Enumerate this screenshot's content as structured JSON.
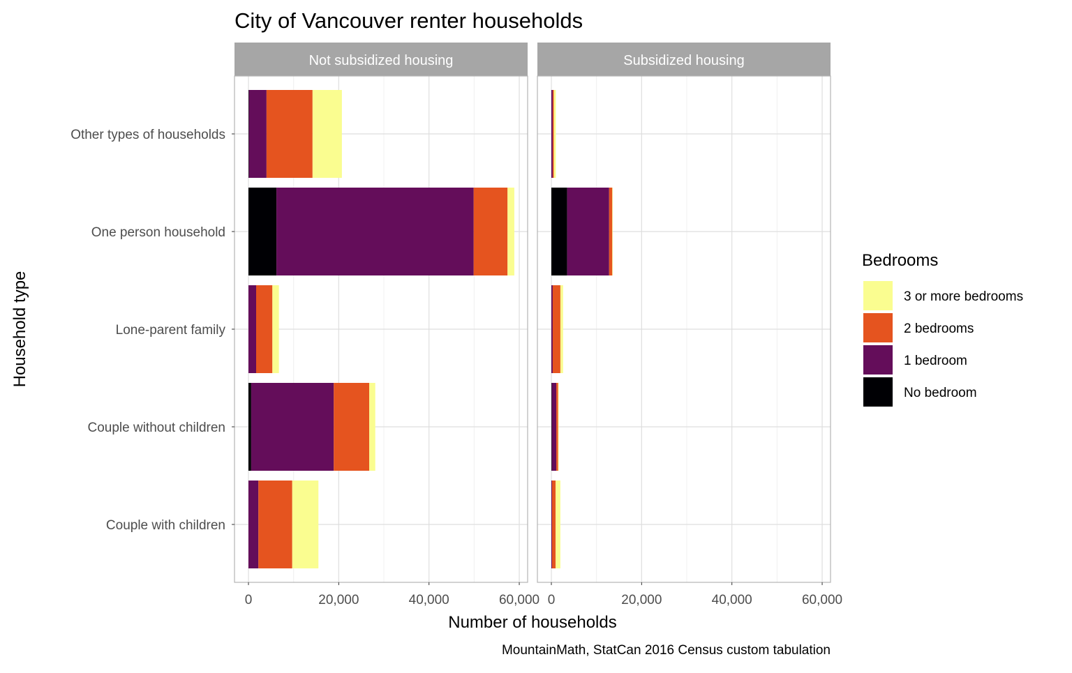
{
  "chart_data": {
    "type": "bar",
    "orientation": "horizontal",
    "stacked": true,
    "title": "City of Vancouver renter households",
    "xlabel": "Number of households",
    "ylabel": "Household type",
    "caption": "MountainMath, StatCan 2016 Census custom tabulation",
    "xlim": [
      0,
      60000
    ],
    "xticks": [
      0,
      20000,
      40000,
      60000
    ],
    "xtick_labels": [
      "0",
      "20,000",
      "40,000",
      "60,000"
    ],
    "grid": true,
    "categories": [
      "Other types of households",
      "One person household",
      "Lone-parent family",
      "Couple without children",
      "Couple with children"
    ],
    "legend": {
      "title": "Bedrooms",
      "position": "right",
      "entries": [
        "3 or more bedrooms",
        "2 bedrooms",
        "1 bedroom",
        "No bedroom"
      ]
    },
    "series_colors": {
      "No bedroom": "#000004",
      "1 bedroom": "#640D5A",
      "2 bedrooms": "#E5541F",
      "3 or more bedrooms": "#FAFD90"
    },
    "panels": [
      {
        "name": "Not subsidized housing",
        "series": [
          {
            "name": "No bedroom",
            "values": [
              100,
              6200,
              0,
              600,
              0
            ]
          },
          {
            "name": "1 bedroom",
            "values": [
              3900,
              43700,
              1700,
              18300,
              2200
            ]
          },
          {
            "name": "2 bedrooms",
            "values": [
              10200,
              7500,
              3600,
              7850,
              7500
            ]
          },
          {
            "name": "3 or more bedrooms",
            "values": [
              6500,
              1500,
              1450,
              1350,
              5800
            ]
          }
        ]
      },
      {
        "name": "Subsidized housing",
        "series": [
          {
            "name": "No bedroom",
            "values": [
              0,
              3500,
              0,
              100,
              0
            ]
          },
          {
            "name": "1 bedroom",
            "values": [
              300,
              9300,
              300,
              1000,
              150
            ]
          },
          {
            "name": "2 bedrooms",
            "values": [
              250,
              700,
              1700,
              400,
              800
            ]
          },
          {
            "name": "3 or more bedrooms",
            "values": [
              450,
              100,
              600,
              150,
              1050
            ]
          }
        ]
      }
    ]
  }
}
